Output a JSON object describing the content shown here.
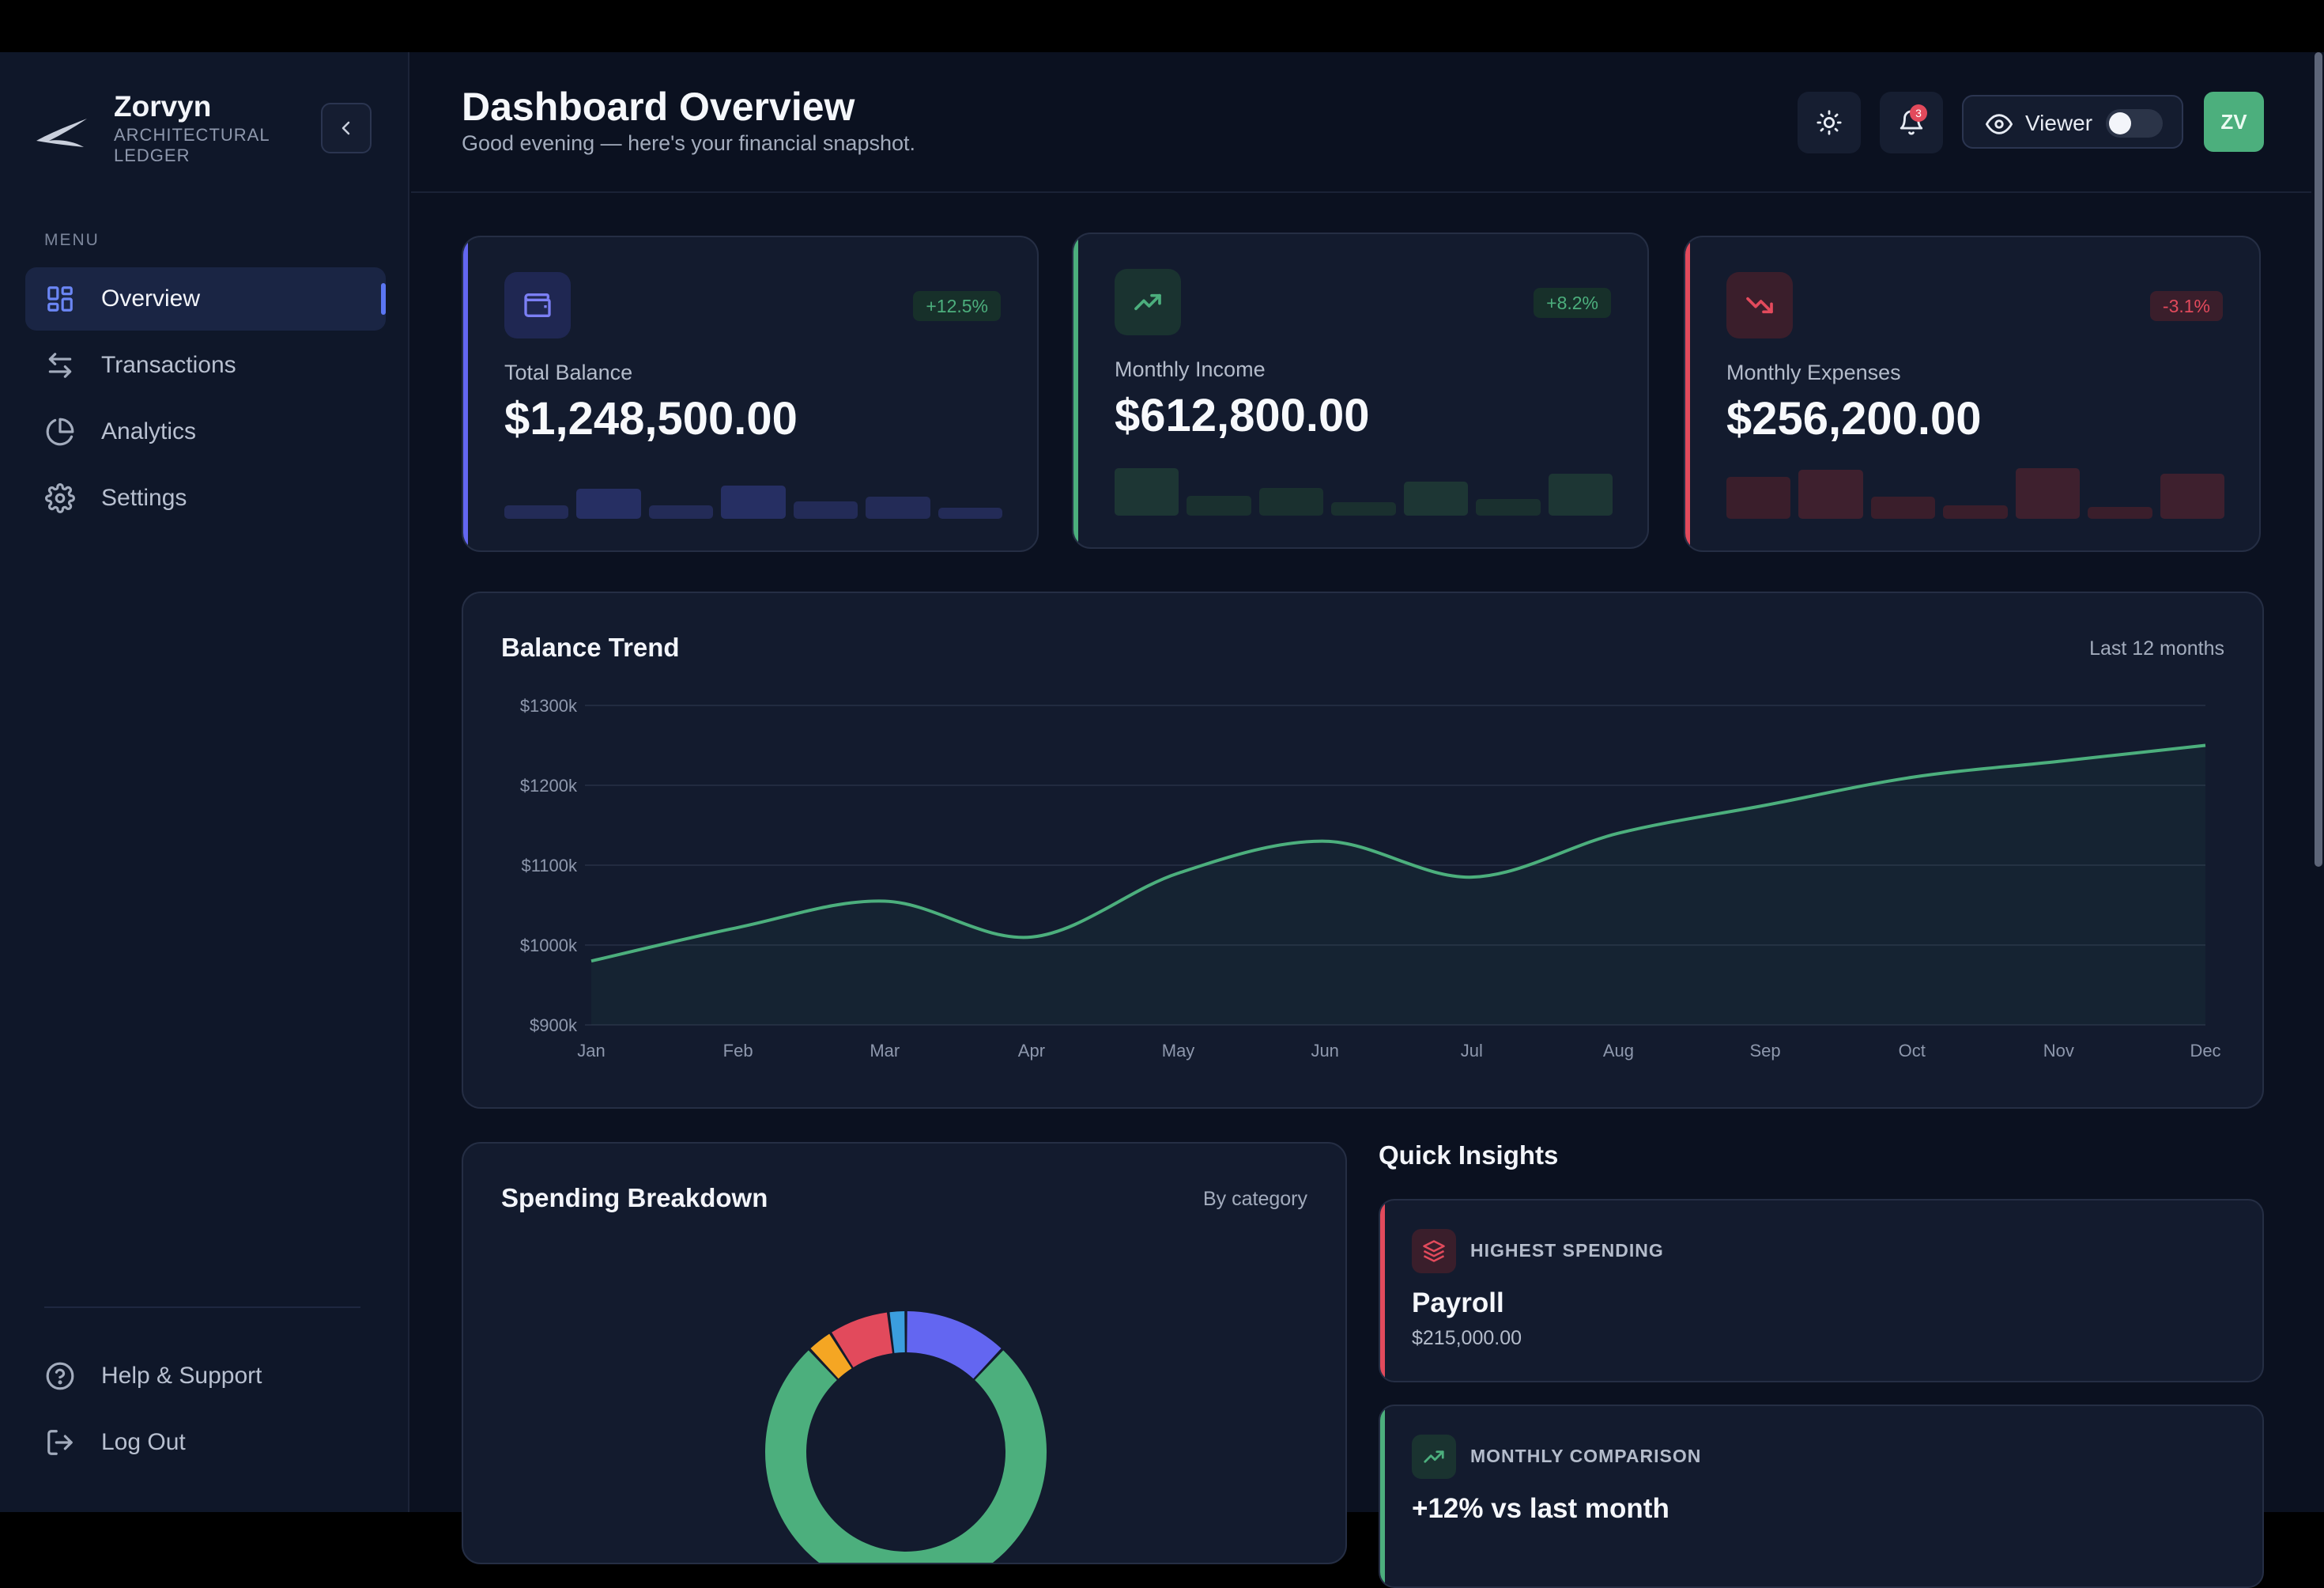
{
  "brand": {
    "name": "Zorvyn",
    "subtitle_line1": "ARCHITECTURAL",
    "subtitle_line2": "LEDGER",
    "logo_icon": "wing-logo-icon"
  },
  "sidebar": {
    "menu_label": "MENU",
    "items": [
      {
        "label": "Overview",
        "icon": "grid-icon",
        "active": true
      },
      {
        "label": "Transactions",
        "icon": "arrows-swap-icon",
        "active": false
      },
      {
        "label": "Analytics",
        "icon": "pie-chart-icon",
        "active": false
      },
      {
        "label": "Settings",
        "icon": "gear-icon",
        "active": false
      }
    ],
    "bottom_items": [
      {
        "label": "Help & Support",
        "icon": "help-circle-icon"
      },
      {
        "label": "Log Out",
        "icon": "logout-icon"
      }
    ]
  },
  "header": {
    "title": "Dashboard Overview",
    "subtitle": "Good evening — here's your financial snapshot.",
    "notification_count": "3",
    "viewer_label": "Viewer",
    "viewer_toggle_on": false,
    "avatar_initials": "ZV"
  },
  "stats": [
    {
      "label": "Total Balance",
      "value": "$1,248,500.00",
      "delta": "+12.5%",
      "icon": "wallet-icon",
      "color": "#6366f1"
    },
    {
      "label": "Monthly Income",
      "value": "$612,800.00",
      "delta": "+8.2%",
      "icon": "trending-up-icon",
      "color": "#4caf7d"
    },
    {
      "label": "Monthly Expenses",
      "value": "$256,200.00",
      "delta": "-3.1%",
      "icon": "trending-down-icon",
      "color": "#e24a5c"
    }
  ],
  "balance_trend": {
    "title": "Balance Trend",
    "meta": "Last 12 months"
  },
  "spending": {
    "title": "Spending Breakdown",
    "meta": "By category"
  },
  "insights": {
    "title": "Quick Insights",
    "items": [
      {
        "label": "HIGHEST SPENDING",
        "title": "Payroll",
        "value": "$215,000.00",
        "icon": "layers-icon",
        "color": "#e24a5c"
      },
      {
        "label": "MONTHLY COMPARISON",
        "title": "+12% vs last month",
        "value": "",
        "icon": "trending-up-icon",
        "color": "#4caf7d"
      }
    ]
  },
  "chart_data": [
    {
      "type": "area",
      "title": "Balance Trend",
      "categories": [
        "Jan",
        "Feb",
        "Mar",
        "Apr",
        "May",
        "Jun",
        "Jul",
        "Aug",
        "Sep",
        "Oct",
        "Nov",
        "Dec"
      ],
      "values": [
        980,
        1022,
        1055,
        1010,
        1090,
        1130,
        1085,
        1140,
        1175,
        1210,
        1230,
        1250
      ],
      "ylim": [
        900,
        1300
      ],
      "yticks": [
        "$900k",
        "$1000k",
        "$1100k",
        "$1200k",
        "$1300k"
      ],
      "grid": true,
      "color": "#4caf7d"
    },
    {
      "type": "pie",
      "title": "Spending Breakdown",
      "values": [
        76,
        12,
        7,
        3,
        2
      ],
      "colors": [
        "#4caf7d",
        "#6366f1",
        "#e24a5c",
        "#f5a623",
        "#3b9ede"
      ]
    }
  ]
}
